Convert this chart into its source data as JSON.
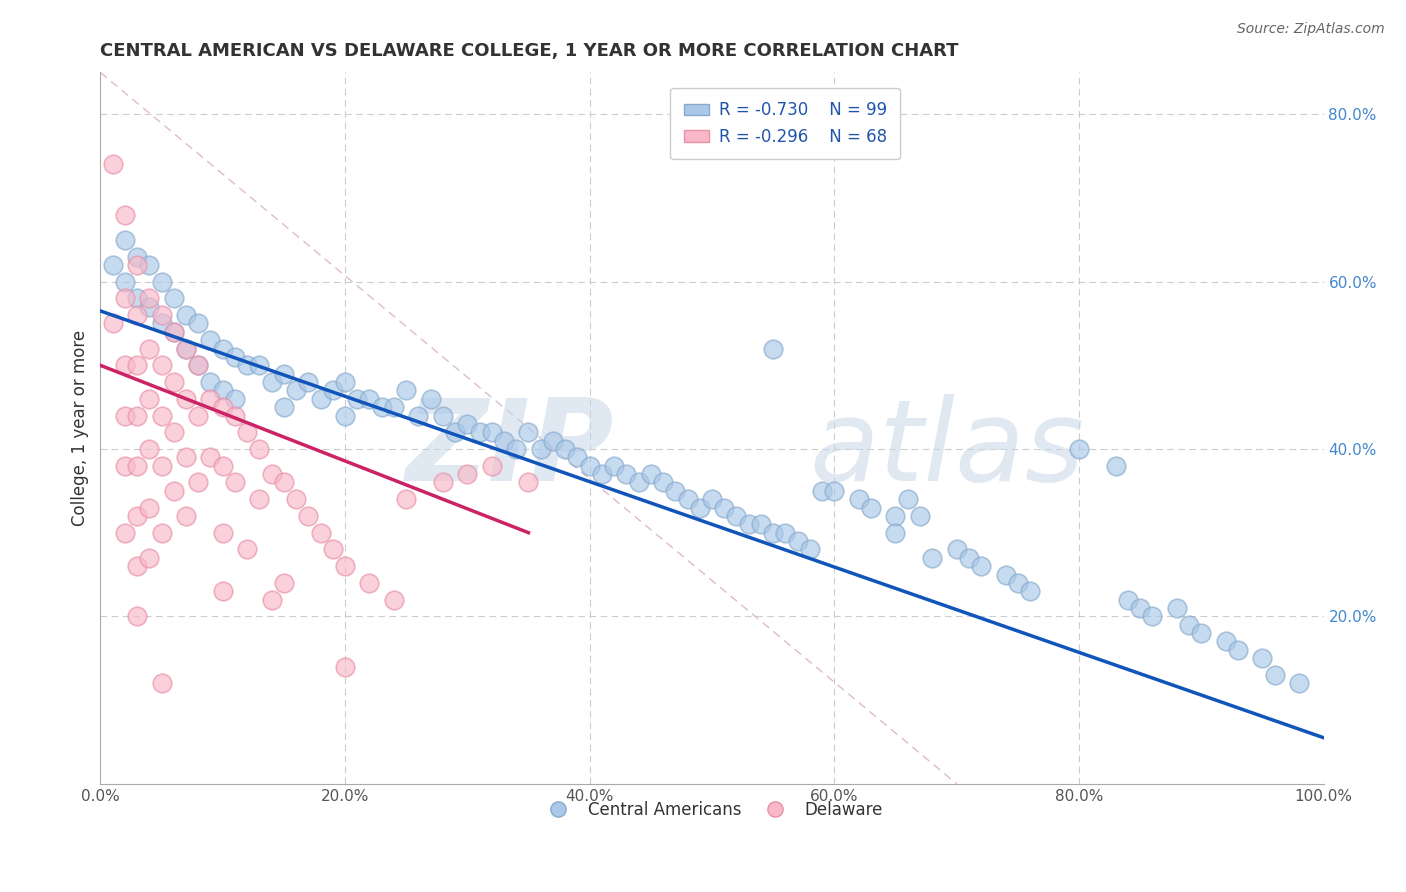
{
  "title": "CENTRAL AMERICAN VS DELAWARE COLLEGE, 1 YEAR OR MORE CORRELATION CHART",
  "source_text": "Source: ZipAtlas.com",
  "ylabel": "College, 1 year or more",
  "xlim": [
    0.0,
    1.0
  ],
  "ylim": [
    0.0,
    0.85
  ],
  "xticks": [
    0.0,
    0.2,
    0.4,
    0.6,
    0.8,
    1.0
  ],
  "xtick_labels": [
    "0.0%",
    "20.0%",
    "40.0%",
    "60.0%",
    "80.0%",
    "100.0%"
  ],
  "yticks": [
    0.0,
    0.2,
    0.4,
    0.6,
    0.8
  ],
  "ytick_labels": [
    "",
    "20.0%",
    "40.0%",
    "60.0%",
    "80.0%"
  ],
  "legend_r1": "R = -0.730",
  "legend_n1": "N = 99",
  "legend_r2": "R = -0.296",
  "legend_n2": "N = 68",
  "blue_fill_color": "#AAC8E8",
  "blue_edge_color": "#88AACC",
  "pink_fill_color": "#F8B8C8",
  "pink_edge_color": "#E890A8",
  "blue_line_color": "#1155BB",
  "pink_line_color": "#CC2266",
  "dash_line_color": "#DDBBCC",
  "grid_color": "#CCCCCC",
  "title_color": "#333333",
  "ytick_color": "#4488CC",
  "legend_text_color": "#2255AA",
  "blue_dots": [
    [
      0.01,
      0.62
    ],
    [
      0.02,
      0.65
    ],
    [
      0.02,
      0.6
    ],
    [
      0.03,
      0.63
    ],
    [
      0.03,
      0.58
    ],
    [
      0.04,
      0.62
    ],
    [
      0.04,
      0.57
    ],
    [
      0.05,
      0.6
    ],
    [
      0.05,
      0.55
    ],
    [
      0.06,
      0.58
    ],
    [
      0.06,
      0.54
    ],
    [
      0.07,
      0.56
    ],
    [
      0.07,
      0.52
    ],
    [
      0.08,
      0.55
    ],
    [
      0.08,
      0.5
    ],
    [
      0.09,
      0.53
    ],
    [
      0.09,
      0.48
    ],
    [
      0.1,
      0.52
    ],
    [
      0.1,
      0.47
    ],
    [
      0.11,
      0.51
    ],
    [
      0.11,
      0.46
    ],
    [
      0.12,
      0.5
    ],
    [
      0.13,
      0.5
    ],
    [
      0.14,
      0.48
    ],
    [
      0.15,
      0.49
    ],
    [
      0.15,
      0.45
    ],
    [
      0.16,
      0.47
    ],
    [
      0.17,
      0.48
    ],
    [
      0.18,
      0.46
    ],
    [
      0.19,
      0.47
    ],
    [
      0.2,
      0.48
    ],
    [
      0.2,
      0.44
    ],
    [
      0.21,
      0.46
    ],
    [
      0.22,
      0.46
    ],
    [
      0.23,
      0.45
    ],
    [
      0.24,
      0.45
    ],
    [
      0.25,
      0.47
    ],
    [
      0.26,
      0.44
    ],
    [
      0.27,
      0.46
    ],
    [
      0.28,
      0.44
    ],
    [
      0.29,
      0.42
    ],
    [
      0.3,
      0.43
    ],
    [
      0.31,
      0.42
    ],
    [
      0.32,
      0.42
    ],
    [
      0.33,
      0.41
    ],
    [
      0.34,
      0.4
    ],
    [
      0.35,
      0.42
    ],
    [
      0.36,
      0.4
    ],
    [
      0.37,
      0.41
    ],
    [
      0.38,
      0.4
    ],
    [
      0.39,
      0.39
    ],
    [
      0.4,
      0.38
    ],
    [
      0.41,
      0.37
    ],
    [
      0.42,
      0.38
    ],
    [
      0.43,
      0.37
    ],
    [
      0.44,
      0.36
    ],
    [
      0.45,
      0.37
    ],
    [
      0.46,
      0.36
    ],
    [
      0.47,
      0.35
    ],
    [
      0.48,
      0.34
    ],
    [
      0.49,
      0.33
    ],
    [
      0.5,
      0.34
    ],
    [
      0.51,
      0.33
    ],
    [
      0.52,
      0.32
    ],
    [
      0.53,
      0.31
    ],
    [
      0.54,
      0.31
    ],
    [
      0.55,
      0.52
    ],
    [
      0.55,
      0.3
    ],
    [
      0.56,
      0.3
    ],
    [
      0.57,
      0.29
    ],
    [
      0.58,
      0.28
    ],
    [
      0.59,
      0.35
    ],
    [
      0.6,
      0.35
    ],
    [
      0.62,
      0.34
    ],
    [
      0.63,
      0.33
    ],
    [
      0.65,
      0.32
    ],
    [
      0.65,
      0.3
    ],
    [
      0.66,
      0.34
    ],
    [
      0.67,
      0.32
    ],
    [
      0.68,
      0.27
    ],
    [
      0.7,
      0.28
    ],
    [
      0.71,
      0.27
    ],
    [
      0.72,
      0.26
    ],
    [
      0.74,
      0.25
    ],
    [
      0.75,
      0.24
    ],
    [
      0.76,
      0.23
    ],
    [
      0.8,
      0.4
    ],
    [
      0.83,
      0.38
    ],
    [
      0.84,
      0.22
    ],
    [
      0.85,
      0.21
    ],
    [
      0.86,
      0.2
    ],
    [
      0.88,
      0.21
    ],
    [
      0.89,
      0.19
    ],
    [
      0.9,
      0.18
    ],
    [
      0.92,
      0.17
    ],
    [
      0.93,
      0.16
    ],
    [
      0.95,
      0.15
    ],
    [
      0.96,
      0.13
    ],
    [
      0.98,
      0.12
    ]
  ],
  "pink_dots": [
    [
      0.01,
      0.74
    ],
    [
      0.01,
      0.55
    ],
    [
      0.02,
      0.68
    ],
    [
      0.02,
      0.58
    ],
    [
      0.02,
      0.5
    ],
    [
      0.02,
      0.44
    ],
    [
      0.02,
      0.38
    ],
    [
      0.02,
      0.3
    ],
    [
      0.03,
      0.62
    ],
    [
      0.03,
      0.56
    ],
    [
      0.03,
      0.5
    ],
    [
      0.03,
      0.44
    ],
    [
      0.03,
      0.38
    ],
    [
      0.03,
      0.32
    ],
    [
      0.03,
      0.26
    ],
    [
      0.04,
      0.58
    ],
    [
      0.04,
      0.52
    ],
    [
      0.04,
      0.46
    ],
    [
      0.04,
      0.4
    ],
    [
      0.04,
      0.33
    ],
    [
      0.04,
      0.27
    ],
    [
      0.05,
      0.56
    ],
    [
      0.05,
      0.5
    ],
    [
      0.05,
      0.44
    ],
    [
      0.05,
      0.38
    ],
    [
      0.05,
      0.3
    ],
    [
      0.06,
      0.54
    ],
    [
      0.06,
      0.48
    ],
    [
      0.06,
      0.42
    ],
    [
      0.06,
      0.35
    ],
    [
      0.07,
      0.52
    ],
    [
      0.07,
      0.46
    ],
    [
      0.07,
      0.39
    ],
    [
      0.07,
      0.32
    ],
    [
      0.08,
      0.5
    ],
    [
      0.08,
      0.44
    ],
    [
      0.08,
      0.36
    ],
    [
      0.09,
      0.46
    ],
    [
      0.09,
      0.39
    ],
    [
      0.1,
      0.45
    ],
    [
      0.1,
      0.38
    ],
    [
      0.1,
      0.3
    ],
    [
      0.11,
      0.44
    ],
    [
      0.11,
      0.36
    ],
    [
      0.12,
      0.42
    ],
    [
      0.12,
      0.28
    ],
    [
      0.13,
      0.4
    ],
    [
      0.13,
      0.34
    ],
    [
      0.14,
      0.37
    ],
    [
      0.14,
      0.22
    ],
    [
      0.15,
      0.36
    ],
    [
      0.15,
      0.24
    ],
    [
      0.16,
      0.34
    ],
    [
      0.17,
      0.32
    ],
    [
      0.18,
      0.3
    ],
    [
      0.19,
      0.28
    ],
    [
      0.2,
      0.26
    ],
    [
      0.2,
      0.14
    ],
    [
      0.22,
      0.24
    ],
    [
      0.24,
      0.22
    ],
    [
      0.25,
      0.34
    ],
    [
      0.28,
      0.36
    ],
    [
      0.3,
      0.37
    ],
    [
      0.32,
      0.38
    ],
    [
      0.35,
      0.36
    ],
    [
      0.1,
      0.23
    ],
    [
      0.03,
      0.2
    ],
    [
      0.05,
      0.12
    ]
  ]
}
